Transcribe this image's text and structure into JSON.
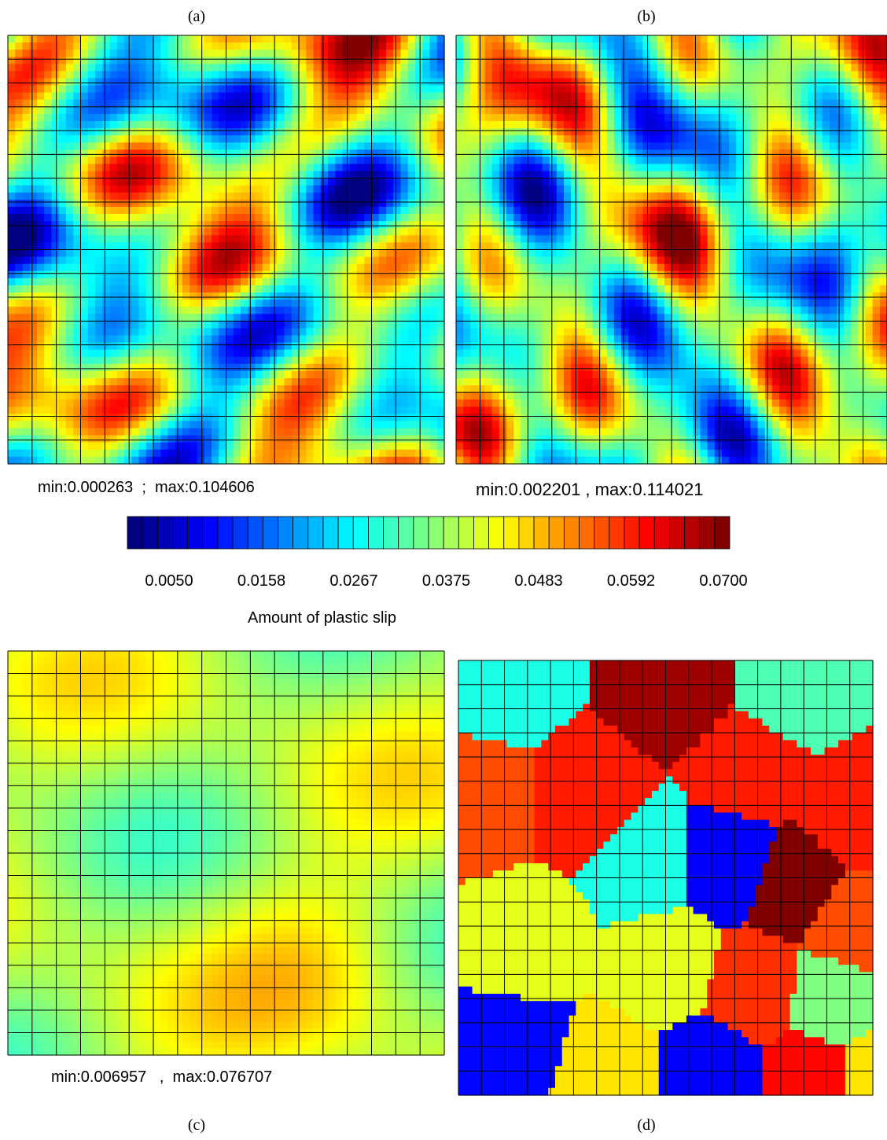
{
  "panels": [
    {
      "label": "(a)",
      "caption": "min:0.000263  ;  max:0.104606"
    },
    {
      "label": "(b)",
      "caption": "min:0.002201 , max:0.114021"
    },
    {
      "label": "(c)",
      "caption": "min:0.006957   ,  max:0.076707"
    },
    {
      "label": "(d)"
    }
  ],
  "colorbar": {
    "ticks": [
      "0.0050",
      "0.0158",
      "0.0267",
      "0.0375",
      "0.0483",
      "0.0592",
      "0.0700"
    ],
    "label": "Amount of plastic slip"
  }
}
